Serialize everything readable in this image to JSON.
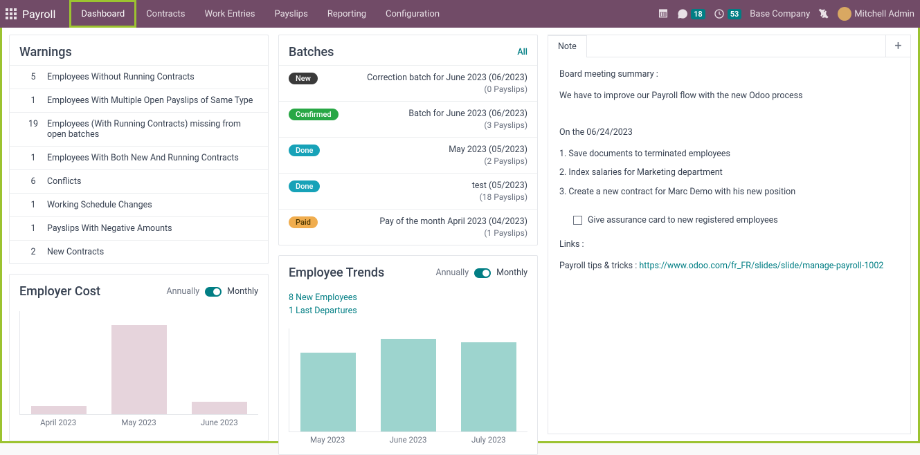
{
  "topbar": {
    "brand": "Payroll",
    "nav": [
      "Dashboard",
      "Contracts",
      "Work Entries",
      "Payslips",
      "Reporting",
      "Configuration"
    ],
    "active_index": 0,
    "messages_count": "18",
    "activities_count": "53",
    "company": "Base Company",
    "user_name": "Mitchell Admin"
  },
  "warnings": {
    "title": "Warnings",
    "rows": [
      {
        "count": "5",
        "text": "Employees Without Running Contracts"
      },
      {
        "count": "1",
        "text": "Employees With Multiple Open Payslips of Same Type"
      },
      {
        "count": "19",
        "text": "Employees (With Running Contracts) missing from open batches"
      },
      {
        "count": "1",
        "text": "Employees With Both New And Running Contracts"
      },
      {
        "count": "6",
        "text": "Conflicts"
      },
      {
        "count": "1",
        "text": "Working Schedule Changes"
      },
      {
        "count": "1",
        "text": "Payslips With Negative Amounts"
      },
      {
        "count": "2",
        "text": "New Contracts"
      }
    ]
  },
  "batches": {
    "title": "Batches",
    "all_label": "All",
    "rows": [
      {
        "status": "New",
        "status_cls": "new",
        "name": "Correction batch for June 2023 (06/2023)",
        "sub": "(0 Payslips)"
      },
      {
        "status": "Confirmed",
        "status_cls": "confirmed",
        "name": "Batch for June 2023 (06/2023)",
        "sub": "(3 Payslips)"
      },
      {
        "status": "Done",
        "status_cls": "done",
        "name": "May 2023 (05/2023)",
        "sub": "(2 Payslips)"
      },
      {
        "status": "Done",
        "status_cls": "done",
        "name": "test (05/2023)",
        "sub": "(18 Payslips)"
      },
      {
        "status": "Paid",
        "status_cls": "paid",
        "name": "Pay of the month April 2023 (04/2023)",
        "sub": "(1 Payslips)"
      }
    ]
  },
  "employer_cost": {
    "title": "Employer Cost",
    "annually": "Annually",
    "monthly": "Monthly",
    "chart": {
      "type": "bar",
      "categories": [
        "April 2023",
        "May 2023",
        "June 2023"
      ],
      "values": [
        12,
        130,
        18
      ],
      "ylim": [
        0,
        150
      ],
      "bar_color": "#e6d4dc",
      "background_color": "#ffffff",
      "label_fontsize": 11.5
    }
  },
  "employee_trends": {
    "title": "Employee Trends",
    "annually": "Annually",
    "monthly": "Monthly",
    "new_emp": "8 New Employees",
    "last_dep": "1 Last Departures",
    "chart": {
      "type": "bar",
      "categories": [
        "May 2023",
        "June 2023",
        "July 2023"
      ],
      "values": [
        115,
        135,
        130
      ],
      "ylim": [
        0,
        150
      ],
      "bar_color": "#9dd4ce",
      "background_color": "#ffffff",
      "label_fontsize": 11.5
    }
  },
  "note": {
    "tab_label": "Note",
    "line1": "Board meeting summary :",
    "line2": "We have to improve our Payroll flow with the new Odoo process",
    "date_line": "On the 06/24/2023",
    "item1": "1. Save documents to terminated employees",
    "item2": "2. Index salaries for Marketing department",
    "item3": "3. Create a new contract for Marc Demo with his new position",
    "checkbox_label": "Give assurance card to new registered employees",
    "links_label": "Links :",
    "tips_prefix": "Payroll tips & tricks : ",
    "tips_url": "https://www.odoo.com/fr_FR/slides/slide/manage-payroll-1002"
  },
  "colors": {
    "topbar": "#714b67",
    "highlight": "#9cc330",
    "accent": "#017e84"
  }
}
